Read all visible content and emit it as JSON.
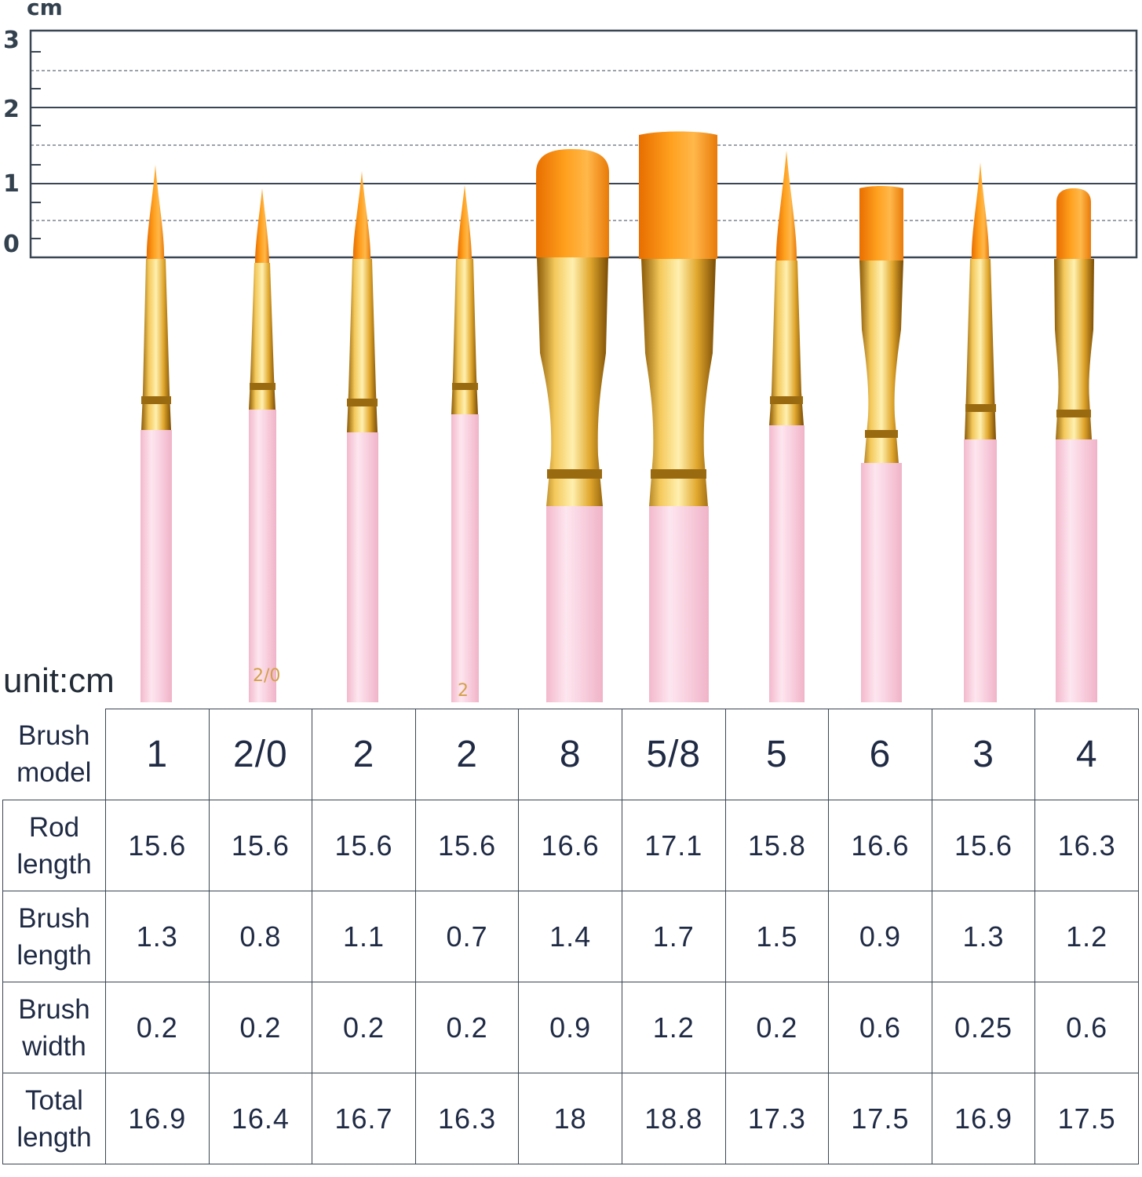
{
  "ruler": {
    "unit_label": "cm",
    "marks": [
      "3",
      "2",
      "1",
      "0"
    ]
  },
  "unit_note": "unit:cm",
  "handle_marks": [
    "2/0",
    "2"
  ],
  "brushes": [
    {
      "model": "1",
      "shape": "round"
    },
    {
      "model": "2/0",
      "shape": "round"
    },
    {
      "model": "2",
      "shape": "round"
    },
    {
      "model": "2",
      "shape": "round"
    },
    {
      "model": "8",
      "shape": "filbert"
    },
    {
      "model": "5/8",
      "shape": "flat"
    },
    {
      "model": "5",
      "shape": "round"
    },
    {
      "model": "6",
      "shape": "flat"
    },
    {
      "model": "3",
      "shape": "round"
    },
    {
      "model": "4",
      "shape": "filbert"
    }
  ],
  "colors": {
    "bristle": "#f7931e",
    "ferrule": "#e0a62c",
    "handle": "#f9cfe0",
    "grid": "#3a4654",
    "text": "#1f2a44"
  },
  "table": {
    "rows": [
      {
        "label": [
          "Brush",
          "model"
        ],
        "values": [
          "1",
          "2/0",
          "2",
          "2",
          "8",
          "5/8",
          "5",
          "6",
          "3",
          "4"
        ]
      },
      {
        "label": [
          "Rod",
          "length"
        ],
        "values": [
          "15.6",
          "15.6",
          "15.6",
          "15.6",
          "16.6",
          "17.1",
          "15.8",
          "16.6",
          "15.6",
          "16.3"
        ]
      },
      {
        "label": [
          "Brush",
          "length"
        ],
        "values": [
          "1.3",
          "0.8",
          "1.1",
          "0.7",
          "1.4",
          "1.7",
          "1.5",
          "0.9",
          "1.3",
          "1.2"
        ]
      },
      {
        "label": [
          "Brush",
          "width"
        ],
        "values": [
          "0.2",
          "0.2",
          "0.2",
          "0.2",
          "0.9",
          "1.2",
          "0.2",
          "0.6",
          "0.25",
          "0.6"
        ]
      },
      {
        "label": [
          "Total",
          "length"
        ],
        "values": [
          "16.9",
          "16.4",
          "16.7",
          "16.3",
          "18",
          "18.8",
          "17.3",
          "17.5",
          "16.9",
          "17.5"
        ]
      }
    ]
  }
}
